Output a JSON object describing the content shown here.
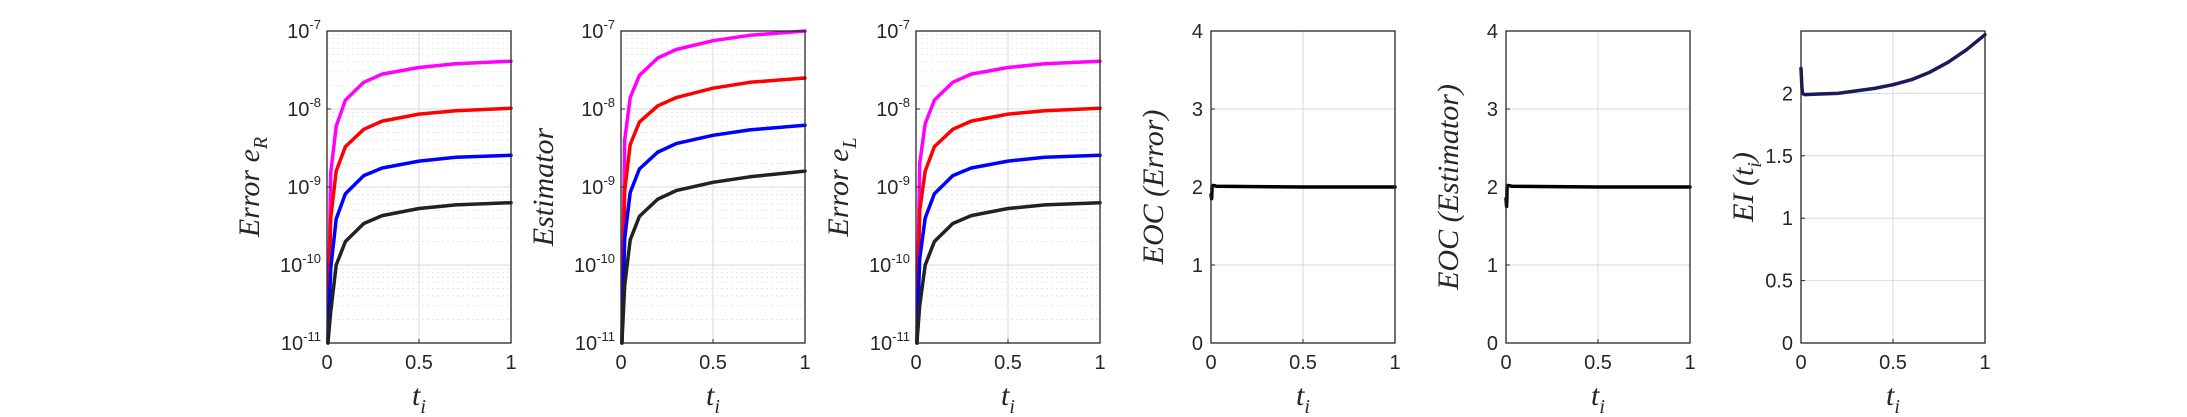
{
  "chart_data": [
    {
      "type": "line",
      "ylabel": "Error e_R",
      "xlabel": "t_i",
      "yscale": "log",
      "xlim": [
        0,
        1
      ],
      "ylim": [
        1e-11,
        1e-07
      ],
      "xticks": [
        "0",
        "0.5",
        "1"
      ],
      "yticks": [
        "10^-11",
        "10^-10",
        "10^-9",
        "10^-8",
        "10^-7"
      ],
      "grid": true,
      "series": [
        {
          "color": "#ff00ff",
          "x": [
            0.005,
            0.02,
            0.05,
            0.1,
            0.2,
            0.3,
            0.5,
            0.7,
            1.0
          ],
          "values": [
            1e-11,
            1.5e-09,
            6e-09,
            1.3e-08,
            2.2e-08,
            2.8e-08,
            3.4e-08,
            3.8e-08,
            4.1e-08
          ]
        },
        {
          "color": "#ff0000",
          "x": [
            0.005,
            0.02,
            0.05,
            0.1,
            0.2,
            0.3,
            0.5,
            0.7,
            1.0
          ],
          "values": [
            1e-11,
            4e-10,
            1.6e-09,
            3.3e-09,
            5.5e-09,
            7e-09,
            8.6e-09,
            9.5e-09,
            1.02e-08
          ]
        },
        {
          "color": "#0000ff",
          "x": [
            0.005,
            0.02,
            0.05,
            0.1,
            0.2,
            0.3,
            0.5,
            0.7,
            1.0
          ],
          "values": [
            1e-11,
            9e-11,
            3.9e-10,
            8.2e-10,
            1.4e-09,
            1.75e-09,
            2.15e-09,
            2.4e-09,
            2.55e-09
          ]
        },
        {
          "color": "#222222",
          "x": [
            0.005,
            0.02,
            0.05,
            0.1,
            0.2,
            0.3,
            0.5,
            0.7,
            1.0
          ],
          "values": [
            1e-11,
            2.5e-11,
            1e-10,
            2e-10,
            3.4e-10,
            4.3e-10,
            5.3e-10,
            5.9e-10,
            6.3e-10
          ]
        }
      ]
    },
    {
      "type": "line",
      "ylabel": "Estimator",
      "xlabel": "t_i",
      "yscale": "log",
      "xlim": [
        0,
        1
      ],
      "ylim": [
        1e-11,
        1e-07
      ],
      "xticks": [
        "0",
        "0.5",
        "1"
      ],
      "yticks": [
        "10^-11",
        "10^-10",
        "10^-9",
        "10^-8",
        "10^-7"
      ],
      "grid": true,
      "series": [
        {
          "color": "#ff00ff",
          "x": [
            0.005,
            0.02,
            0.05,
            0.1,
            0.2,
            0.3,
            0.5,
            0.7,
            1.0
          ],
          "values": [
            1e-11,
            4e-09,
            1.4e-08,
            2.7e-08,
            4.5e-08,
            5.8e-08,
            7.5e-08,
            8.8e-08,
            1e-07
          ]
        },
        {
          "color": "#ff0000",
          "x": [
            0.005,
            0.02,
            0.05,
            0.1,
            0.2,
            0.3,
            0.5,
            0.7,
            1.0
          ],
          "values": [
            1e-11,
            9e-10,
            3.5e-09,
            6.8e-09,
            1.1e-08,
            1.4e-08,
            1.85e-08,
            2.2e-08,
            2.5e-08
          ]
        },
        {
          "color": "#0000ff",
          "x": [
            0.005,
            0.02,
            0.05,
            0.1,
            0.2,
            0.3,
            0.5,
            0.7,
            1.0
          ],
          "values": [
            1e-11,
            2.2e-10,
            8.5e-10,
            1.7e-09,
            2.8e-09,
            3.6e-09,
            4.6e-09,
            5.4e-09,
            6.2e-09
          ]
        },
        {
          "color": "#222222",
          "x": [
            0.005,
            0.02,
            0.05,
            0.1,
            0.2,
            0.3,
            0.5,
            0.7,
            1.0
          ],
          "values": [
            1e-11,
            5.5e-11,
            2.1e-10,
            4.2e-10,
            7e-10,
            9e-10,
            1.15e-09,
            1.35e-09,
            1.6e-09
          ]
        }
      ]
    },
    {
      "type": "line",
      "ylabel": "Error e_L",
      "xlabel": "t_i",
      "yscale": "log",
      "xlim": [
        0,
        1
      ],
      "ylim": [
        1e-11,
        1e-07
      ],
      "xticks": [
        "0",
        "0.5",
        "1"
      ],
      "yticks": [
        "10^-11",
        "10^-10",
        "10^-9",
        "10^-8",
        "10^-7"
      ],
      "grid": true,
      "series": [
        {
          "color": "#ff00ff",
          "x": [
            0.005,
            0.02,
            0.05,
            0.1,
            0.2,
            0.3,
            0.5,
            0.7,
            1.0
          ],
          "values": [
            1e-11,
            2e-09,
            6.5e-09,
            1.3e-08,
            2.2e-08,
            2.8e-08,
            3.4e-08,
            3.8e-08,
            4.1e-08
          ]
        },
        {
          "color": "#ff0000",
          "x": [
            0.005,
            0.02,
            0.05,
            0.1,
            0.2,
            0.3,
            0.5,
            0.7,
            1.0
          ],
          "values": [
            1e-11,
            5e-10,
            1.6e-09,
            3.3e-09,
            5.5e-09,
            7e-09,
            8.6e-09,
            9.5e-09,
            1.02e-08
          ]
        },
        {
          "color": "#0000ff",
          "x": [
            0.005,
            0.02,
            0.05,
            0.1,
            0.2,
            0.3,
            0.5,
            0.7,
            1.0
          ],
          "values": [
            1e-11,
            1.2e-10,
            4e-10,
            8.2e-10,
            1.4e-09,
            1.75e-09,
            2.15e-09,
            2.4e-09,
            2.55e-09
          ]
        },
        {
          "color": "#222222",
          "x": [
            0.005,
            0.02,
            0.05,
            0.1,
            0.2,
            0.3,
            0.5,
            0.7,
            1.0
          ],
          "values": [
            1e-11,
            3e-11,
            1e-10,
            2e-10,
            3.4e-10,
            4.3e-10,
            5.3e-10,
            5.9e-10,
            6.3e-10
          ]
        }
      ]
    },
    {
      "type": "line",
      "ylabel": "EOC (Error)",
      "xlabel": "t_i",
      "yscale": "linear",
      "xlim": [
        0,
        1
      ],
      "ylim": [
        0,
        4
      ],
      "xticks": [
        "0",
        "0.5",
        "1"
      ],
      "yticks": [
        "0",
        "1",
        "2",
        "3",
        "4"
      ],
      "grid": true,
      "series": [
        {
          "color": "#000000",
          "x": [
            0.0,
            0.003,
            0.006,
            0.012,
            0.03,
            0.5,
            1.0
          ],
          "values": [
            1.9,
            1.85,
            2.0,
            2.02,
            2.01,
            2.0,
            2.0
          ]
        }
      ]
    },
    {
      "type": "line",
      "ylabel": "EOC (Estimator)",
      "xlabel": "t_i",
      "yscale": "linear",
      "xlim": [
        0,
        1
      ],
      "ylim": [
        0,
        4
      ],
      "xticks": [
        "0",
        "0.5",
        "1"
      ],
      "yticks": [
        "0",
        "1",
        "2",
        "3",
        "4"
      ],
      "grid": true,
      "series": [
        {
          "color": "#000000",
          "x": [
            0.0,
            0.003,
            0.006,
            0.012,
            0.03,
            0.5,
            1.0
          ],
          "values": [
            1.85,
            1.75,
            2.0,
            2.02,
            2.01,
            2.0,
            2.0
          ]
        }
      ]
    },
    {
      "type": "line",
      "ylabel": "EI (t_i)",
      "xlabel": "t_i",
      "yscale": "linear",
      "xlim": [
        0,
        1
      ],
      "ylim": [
        0,
        2.5
      ],
      "xticks": [
        "0",
        "0.5",
        "1"
      ],
      "yticks": [
        "0",
        "0.5",
        "1",
        "1.5",
        "2"
      ],
      "grid": true,
      "series": [
        {
          "color": "#1a1a5e",
          "x": [
            0.0,
            0.005,
            0.008,
            0.02,
            0.1,
            0.2,
            0.3,
            0.4,
            0.5,
            0.6,
            0.7,
            0.8,
            0.9,
            1.0
          ],
          "values": [
            2.2,
            2.05,
            2.0,
            1.99,
            1.995,
            2.0,
            2.02,
            2.04,
            2.07,
            2.11,
            2.17,
            2.25,
            2.35,
            2.47
          ]
        }
      ]
    }
  ]
}
